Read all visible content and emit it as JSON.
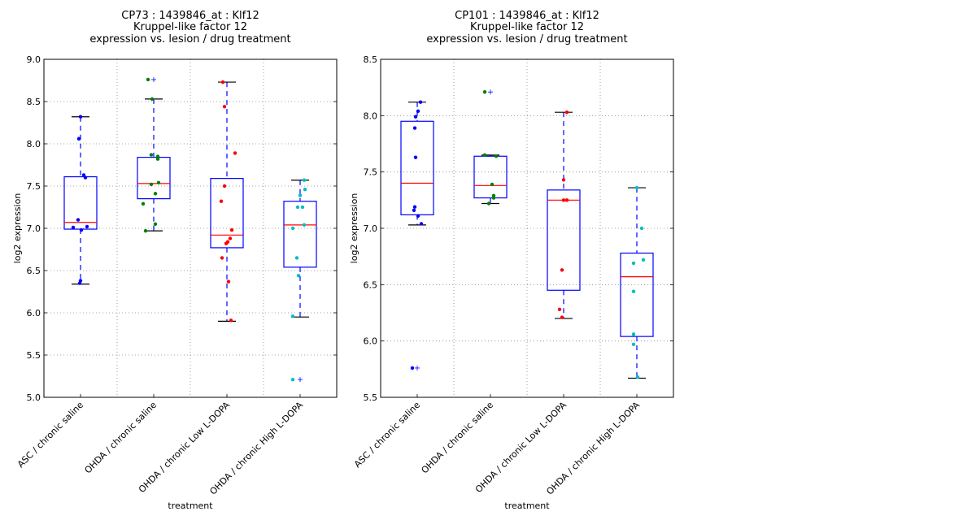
{
  "chart_data": [
    {
      "type": "box",
      "title_lines": [
        "CP73 : 1439846_at : Klf12",
        "Kruppel-like factor 12",
        "expression vs. lesion / drug treatment"
      ],
      "xlabel": "treatment",
      "ylabel": "log2 expression",
      "ylim": [
        5.0,
        9.0
      ],
      "yticks": [
        "5.0",
        "5.5",
        "6.0",
        "6.5",
        "7.0",
        "7.5",
        "8.0",
        "8.5",
        "9.0"
      ],
      "grid": true,
      "categories": [
        "ASC / chronic saline",
        "OHDA / chronic saline",
        "OHDA / chronic Low L-DOPA",
        "OHDA / chronic High L-DOPA"
      ],
      "groups": [
        {
          "name": "ASC / chronic saline",
          "color": "#0000ff",
          "whisker_low": 6.34,
          "q1": 6.99,
          "median": 7.07,
          "q3": 7.61,
          "whisker_high": 8.32,
          "outliers": [],
          "points": [
            8.32,
            8.06,
            7.63,
            7.6,
            7.1,
            7.02,
            7.01,
            6.98,
            6.38,
            6.35
          ]
        },
        {
          "name": "OHDA / chronic saline",
          "color": "#008000",
          "whisker_low": 6.97,
          "q1": 7.35,
          "median": 7.53,
          "q3": 7.84,
          "whisker_high": 8.53,
          "outliers": [
            8.76
          ],
          "points": [
            8.76,
            8.53,
            7.87,
            7.85,
            7.82,
            7.54,
            7.52,
            7.41,
            7.29,
            7.05,
            6.97
          ]
        },
        {
          "name": "OHDA / chronic Low L-DOPA",
          "color": "#ff0000",
          "whisker_low": 5.9,
          "q1": 6.77,
          "median": 6.92,
          "q3": 7.59,
          "whisker_high": 8.73,
          "outliers": [],
          "points": [
            8.73,
            8.44,
            7.89,
            7.5,
            7.32,
            6.98,
            6.88,
            6.84,
            6.82,
            6.65,
            6.37,
            5.91
          ]
        },
        {
          "name": "OHDA / chronic High L-DOPA",
          "color": "#00bfbf",
          "whisker_low": 5.95,
          "q1": 6.54,
          "median": 7.04,
          "q3": 7.32,
          "whisker_high": 7.57,
          "outliers": [
            5.21
          ],
          "points": [
            7.57,
            7.46,
            7.39,
            7.25,
            7.25,
            7.04,
            7.0,
            6.65,
            6.44,
            5.96,
            5.21
          ]
        }
      ]
    },
    {
      "type": "box",
      "title_lines": [
        "CP101 : 1439846_at : Klf12",
        "Kruppel-like factor 12",
        "expression vs. lesion / drug treatment"
      ],
      "xlabel": "treatment",
      "ylabel": "log2 expression",
      "ylim": [
        5.5,
        8.5
      ],
      "yticks": [
        "5.5",
        "6.0",
        "6.5",
        "7.0",
        "7.5",
        "8.0",
        "8.5"
      ],
      "grid": true,
      "categories": [
        "ASC / chronic saline",
        "OHDA / chronic saline",
        "OHDA / chronic Low L-DOPA",
        "OHDA / chronic High L-DOPA"
      ],
      "groups": [
        {
          "name": "ASC / chronic saline",
          "color": "#0000ff",
          "whisker_low": 7.03,
          "q1": 7.12,
          "median": 7.4,
          "q3": 7.95,
          "whisker_high": 8.12,
          "outliers": [
            5.76
          ],
          "points": [
            8.12,
            8.04,
            7.99,
            7.89,
            7.63,
            7.19,
            7.16,
            7.11,
            7.04,
            5.76
          ]
        },
        {
          "name": "OHDA / chronic saline",
          "color": "#008000",
          "whisker_low": 7.22,
          "q1": 7.27,
          "median": 7.38,
          "q3": 7.64,
          "whisker_high": 7.65,
          "outliers": [
            8.21
          ],
          "points": [
            8.21,
            7.65,
            7.64,
            7.39,
            7.29,
            7.27,
            7.22
          ]
        },
        {
          "name": "OHDA / chronic Low L-DOPA",
          "color": "#ff0000",
          "whisker_low": 6.2,
          "q1": 6.45,
          "median": 7.25,
          "q3": 7.34,
          "whisker_high": 8.03,
          "outliers": [],
          "points": [
            8.03,
            7.43,
            7.25,
            7.25,
            6.63,
            6.28,
            6.21
          ]
        },
        {
          "name": "OHDA / chronic High L-DOPA",
          "color": "#00bfbf",
          "whisker_low": 5.67,
          "q1": 6.04,
          "median": 6.57,
          "q3": 6.78,
          "whisker_high": 7.36,
          "outliers": [],
          "points": [
            7.36,
            7.0,
            6.72,
            6.69,
            6.44,
            6.06,
            5.97,
            5.68
          ]
        }
      ]
    }
  ]
}
